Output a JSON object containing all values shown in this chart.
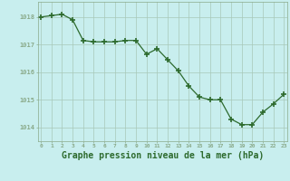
{
  "x": [
    0,
    1,
    2,
    3,
    4,
    5,
    6,
    7,
    8,
    9,
    10,
    11,
    12,
    13,
    14,
    15,
    16,
    17,
    18,
    19,
    20,
    21,
    22,
    23
  ],
  "y": [
    1018.0,
    1018.05,
    1018.1,
    1017.9,
    1017.15,
    1017.1,
    1017.1,
    1017.1,
    1017.15,
    1017.15,
    1016.65,
    1016.85,
    1016.45,
    1016.05,
    1015.5,
    1015.1,
    1015.0,
    1015.0,
    1014.3,
    1014.1,
    1014.1,
    1014.55,
    1014.85,
    1015.2
  ],
  "line_color": "#2d6a2d",
  "marker": "+",
  "marker_size": 4,
  "marker_lw": 1.2,
  "bg_color": "#c8eeee",
  "grid_color": "#a8c8b8",
  "xlabel": "Graphe pression niveau de la mer (hPa)",
  "xlabel_fontsize": 7,
  "ylabel_ticks": [
    1014,
    1015,
    1016,
    1017,
    1018
  ],
  "ylim": [
    1013.5,
    1018.55
  ],
  "xlim": [
    -0.3,
    23.3
  ],
  "tick_label_color": "#2d6a2d",
  "axis_color": "#8aaa8a",
  "title_color": "#2d6a2d",
  "linewidth": 0.9
}
